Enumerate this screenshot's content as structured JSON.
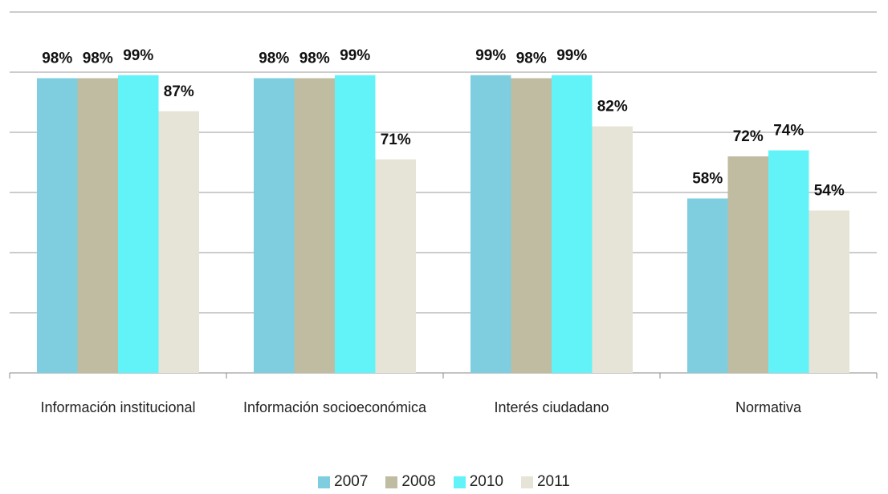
{
  "chart_data": {
    "type": "bar",
    "categories": [
      "Información institucional",
      "Información socioeconómica",
      "Interés ciudadano",
      "Normativa"
    ],
    "series": [
      {
        "name": "2007",
        "color": "#7ecedf",
        "values": [
          98,
          98,
          99,
          58
        ],
        "value_labels": [
          "98%",
          "98%",
          "99%",
          "58%"
        ]
      },
      {
        "name": "2008",
        "color": "#c0bca2",
        "values": [
          98,
          98,
          98,
          72
        ],
        "value_labels": [
          "98%",
          "98%",
          "98%",
          "72%"
        ]
      },
      {
        "name": "2010",
        "color": "#62f3f8",
        "values": [
          99,
          99,
          99,
          74
        ],
        "value_labels": [
          "99%",
          "99%",
          "99%",
          "74%"
        ]
      },
      {
        "name": "2011",
        "color": "#e6e4d6",
        "values": [
          87,
          71,
          82,
          54
        ],
        "value_labels": [
          "87%",
          "71%",
          "82%",
          "54%"
        ]
      }
    ],
    "ylim": [
      0,
      120
    ],
    "yticks": [
      0,
      20,
      40,
      60,
      80,
      100,
      120
    ],
    "grid": true,
    "legend": "bottom"
  }
}
